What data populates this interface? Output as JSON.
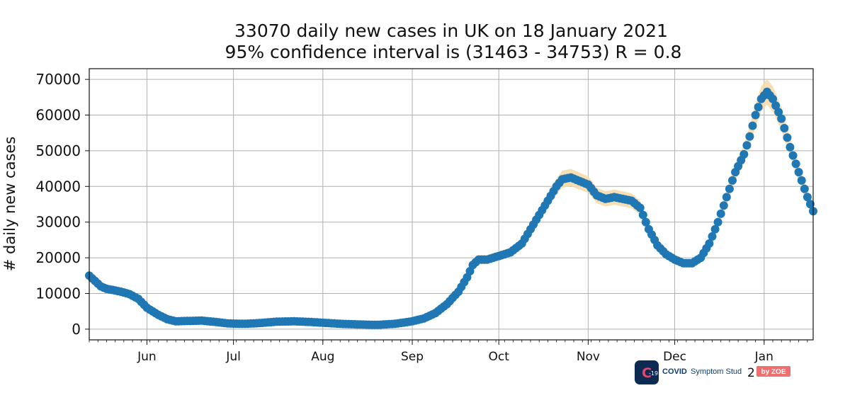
{
  "chart_data": {
    "type": "scatter",
    "title": "33070 daily new cases in UK on 18 January 2021",
    "subtitle": "95% confidence interval is (31463 - 34753) R = 0.8",
    "xlabel": "",
    "ylabel": "# daily new cases",
    "x_start": "2020-05-12",
    "x_end": "2021-01-18",
    "ylim": [
      -3000,
      73000
    ],
    "yticks": [
      0,
      10000,
      20000,
      30000,
      40000,
      50000,
      60000,
      70000
    ],
    "xticks": [
      {
        "label": "Jun",
        "date": "2020-06-01"
      },
      {
        "label": "Jul",
        "date": "2020-07-01"
      },
      {
        "label": "Aug",
        "date": "2020-08-01"
      },
      {
        "label": "Sep",
        "date": "2020-09-01"
      },
      {
        "label": "Oct",
        "date": "2020-10-01"
      },
      {
        "label": "Nov",
        "date": "2020-11-01"
      },
      {
        "label": "Dec",
        "date": "2020-12-01"
      },
      {
        "label": "Jan",
        "date": "2021-01-01"
      }
    ],
    "grid": true,
    "series": [
      {
        "name": "",
        "color": "#1f77b4",
        "band_color": "#f7d9a6",
        "points": [
          [
            "2020-05-12",
            15000
          ],
          [
            "2020-05-14",
            13500
          ],
          [
            "2020-05-16",
            12000
          ],
          [
            "2020-05-18",
            11300
          ],
          [
            "2020-05-20",
            11000
          ],
          [
            "2020-05-23",
            10500
          ],
          [
            "2020-05-26",
            9800
          ],
          [
            "2020-05-29",
            8500
          ],
          [
            "2020-06-01",
            6000
          ],
          [
            "2020-06-05",
            4000
          ],
          [
            "2020-06-08",
            2800
          ],
          [
            "2020-06-11",
            2200
          ],
          [
            "2020-06-15",
            2300
          ],
          [
            "2020-06-20",
            2400
          ],
          [
            "2020-06-25",
            2000
          ],
          [
            "2020-06-29",
            1600
          ],
          [
            "2020-07-05",
            1500
          ],
          [
            "2020-07-10",
            1700
          ],
          [
            "2020-07-16",
            2100
          ],
          [
            "2020-07-22",
            2200
          ],
          [
            "2020-07-28",
            2000
          ],
          [
            "2020-08-01",
            1800
          ],
          [
            "2020-08-07",
            1500
          ],
          [
            "2020-08-14",
            1300
          ],
          [
            "2020-08-20",
            1200
          ],
          [
            "2020-08-26",
            1500
          ],
          [
            "2020-09-01",
            2200
          ],
          [
            "2020-09-05",
            3000
          ],
          [
            "2020-09-09",
            4500
          ],
          [
            "2020-09-13",
            7000
          ],
          [
            "2020-09-17",
            10500
          ],
          [
            "2020-09-20",
            14500
          ],
          [
            "2020-09-22",
            18000
          ],
          [
            "2020-09-24",
            19500
          ],
          [
            "2020-09-27",
            19500
          ],
          [
            "2020-10-01",
            20500
          ],
          [
            "2020-10-05",
            21500
          ],
          [
            "2020-10-09",
            24000
          ],
          [
            "2020-10-12",
            28000
          ],
          [
            "2020-10-15",
            32000
          ],
          [
            "2020-10-18",
            36000
          ],
          [
            "2020-10-21",
            40000
          ],
          [
            "2020-10-23",
            42000
          ],
          [
            "2020-10-26",
            42500
          ],
          [
            "2020-10-29",
            41500
          ],
          [
            "2020-11-01",
            40500
          ],
          [
            "2020-11-04",
            37500
          ],
          [
            "2020-11-07",
            36500
          ],
          [
            "2020-11-10",
            37000
          ],
          [
            "2020-11-13",
            36500
          ],
          [
            "2020-11-16",
            36000
          ],
          [
            "2020-11-19",
            34000
          ],
          [
            "2020-11-22",
            28000
          ],
          [
            "2020-11-25",
            23500
          ],
          [
            "2020-11-28",
            21000
          ],
          [
            "2020-12-01",
            19500
          ],
          [
            "2020-12-04",
            18500
          ],
          [
            "2020-12-07",
            18500
          ],
          [
            "2020-12-10",
            20000
          ],
          [
            "2020-12-13",
            24000
          ],
          [
            "2020-12-16",
            30000
          ],
          [
            "2020-12-19",
            37000
          ],
          [
            "2020-12-22",
            44000
          ],
          [
            "2020-12-25",
            49000
          ],
          [
            "2020-12-27",
            54000
          ],
          [
            "2020-12-29",
            60000
          ],
          [
            "2020-12-31",
            64500
          ],
          [
            "2021-01-02",
            66500
          ],
          [
            "2021-01-04",
            64500
          ],
          [
            "2021-01-07",
            59000
          ],
          [
            "2021-01-10",
            51000
          ],
          [
            "2021-01-13",
            44000
          ],
          [
            "2021-01-16",
            37000
          ],
          [
            "2021-01-18",
            33070
          ]
        ]
      }
    ]
  },
  "watermark": {
    "logo_glyph": "C",
    "logo_badge": "-19",
    "brand_main": "COVID",
    "brand_sub": "Symptom Stud",
    "overlap_digit": "2",
    "brand_by": "by ZOE",
    "logo_bg": "#0d2a52",
    "logo_accent": "#e8456b",
    "brand_text_color": "#0d3c6e",
    "badge_color": "#ef6f6f"
  }
}
